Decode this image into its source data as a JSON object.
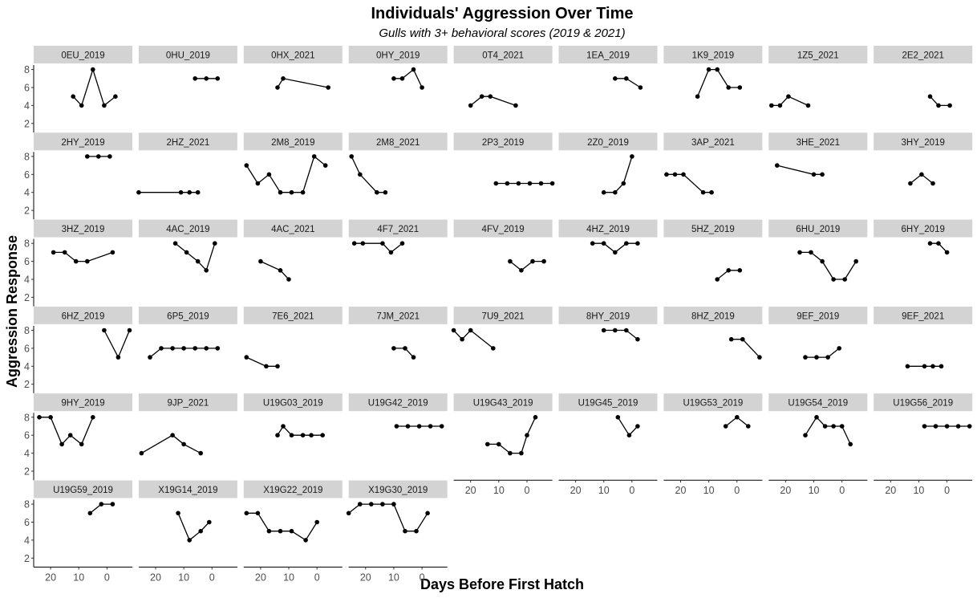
{
  "chart_data": {
    "type": "line",
    "title": "Individuals' Aggression Over Time",
    "subtitle": "Gulls with 3+ behavioral scores (2019 & 2021)",
    "xlabel": "Days Before First Hatch",
    "ylabel": "Aggression Response",
    "xlim": [
      26,
      -9
    ],
    "x_reversed": true,
    "ylim": [
      1,
      8.5
    ],
    "x_ticks": [
      20,
      10,
      0
    ],
    "y_ticks": [
      2,
      4,
      6,
      8
    ],
    "grid": false,
    "ncol": 9,
    "facets": [
      {
        "name": "0EU_2019",
        "x": [
          12,
          9,
          5,
          1,
          -3
        ],
        "y": [
          5,
          4,
          8,
          4,
          5
        ]
      },
      {
        "name": "0HU_2019",
        "x": [
          6,
          2,
          -2
        ],
        "y": [
          7,
          7,
          7
        ]
      },
      {
        "name": "0HX_2021",
        "x": [
          14,
          12,
          -4
        ],
        "y": [
          6,
          7,
          6
        ]
      },
      {
        "name": "0HY_2019",
        "x": [
          10,
          7,
          3,
          0
        ],
        "y": [
          7,
          7,
          8,
          6
        ]
      },
      {
        "name": "0T4_2021",
        "x": [
          20,
          16,
          13,
          4
        ],
        "y": [
          4,
          5,
          5,
          4
        ]
      },
      {
        "name": "1EA_2019",
        "x": [
          6,
          2,
          -3
        ],
        "y": [
          7,
          7,
          6
        ]
      },
      {
        "name": "1K9_2019",
        "x": [
          14,
          10,
          7,
          3,
          -1
        ],
        "y": [
          5,
          8,
          8,
          6,
          6
        ]
      },
      {
        "name": "1Z5_2021",
        "x": [
          25,
          22,
          19,
          12
        ],
        "y": [
          4,
          4,
          5,
          4
        ]
      },
      {
        "name": "2E2_2021",
        "x": [
          6,
          3,
          -1
        ],
        "y": [
          5,
          4,
          4
        ]
      },
      {
        "name": "2HY_2019",
        "x": [
          7,
          3,
          -1
        ],
        "y": [
          8,
          8,
          8
        ]
      },
      {
        "name": "2HZ_2021",
        "x": [
          26,
          11,
          8,
          5
        ],
        "y": [
          4,
          4,
          4,
          4
        ]
      },
      {
        "name": "2M8_2019",
        "x": [
          25,
          21,
          17,
          13,
          9,
          5,
          1,
          -3
        ],
        "y": [
          7,
          5,
          6,
          4,
          4,
          4,
          8,
          7
        ]
      },
      {
        "name": "2M8_2021",
        "x": [
          25,
          22,
          16,
          13
        ],
        "y": [
          8,
          6,
          4,
          4
        ]
      },
      {
        "name": "2P3_2019",
        "x": [
          11,
          7,
          3,
          -1,
          -5,
          -9
        ],
        "y": [
          5,
          5,
          5,
          5,
          5,
          5
        ]
      },
      {
        "name": "2Z0_2019",
        "x": [
          10,
          6,
          3,
          0
        ],
        "y": [
          4,
          4,
          5,
          8
        ]
      },
      {
        "name": "3AP_2021",
        "x": [
          25,
          22,
          19,
          12,
          9
        ],
        "y": [
          6,
          6,
          6,
          4,
          4
        ]
      },
      {
        "name": "3HE_2021",
        "x": [
          23,
          10,
          7
        ],
        "y": [
          7,
          6,
          6
        ]
      },
      {
        "name": "3HY_2019",
        "x": [
          13,
          9,
          5
        ],
        "y": [
          5,
          6,
          5
        ]
      },
      {
        "name": "3HZ_2019",
        "x": [
          19,
          15,
          11,
          7,
          -2
        ],
        "y": [
          7,
          7,
          6,
          6,
          7
        ]
      },
      {
        "name": "4AC_2019",
        "x": [
          13,
          9,
          5,
          2,
          -1
        ],
        "y": [
          8,
          7,
          6,
          5,
          8
        ]
      },
      {
        "name": "4AC_2021",
        "x": [
          20,
          13,
          10
        ],
        "y": [
          6,
          5,
          4
        ]
      },
      {
        "name": "4F7_2021",
        "x": [
          24,
          21,
          14,
          11,
          7
        ],
        "y": [
          8,
          8,
          8,
          7,
          8
        ]
      },
      {
        "name": "4FV_2019",
        "x": [
          6,
          2,
          -2,
          -6
        ],
        "y": [
          6,
          5,
          6,
          6
        ]
      },
      {
        "name": "4HZ_2019",
        "x": [
          14,
          10,
          6,
          2,
          -2
        ],
        "y": [
          8,
          8,
          7,
          8,
          8
        ]
      },
      {
        "name": "5HZ_2019",
        "x": [
          7,
          3,
          -1
        ],
        "y": [
          4,
          5,
          5
        ]
      },
      {
        "name": "6HU_2019",
        "x": [
          15,
          11,
          7,
          3,
          -1,
          -5
        ],
        "y": [
          7,
          7,
          6,
          4,
          4,
          6
        ]
      },
      {
        "name": "6HY_2019",
        "x": [
          6,
          3,
          0
        ],
        "y": [
          8,
          8,
          7
        ]
      },
      {
        "name": "6HZ_2019",
        "x": [
          1,
          -4,
          -8
        ],
        "y": [
          8,
          5,
          8
        ]
      },
      {
        "name": "6P5_2019",
        "x": [
          22,
          18,
          14,
          10,
          6,
          2,
          -2
        ],
        "y": [
          5,
          6,
          6,
          6,
          6,
          6,
          6
        ]
      },
      {
        "name": "7E6_2021",
        "x": [
          25,
          18,
          14
        ],
        "y": [
          5,
          4,
          4
        ]
      },
      {
        "name": "7JM_2021",
        "x": [
          10,
          6,
          3
        ],
        "y": [
          6,
          6,
          5
        ]
      },
      {
        "name": "7U9_2021",
        "x": [
          26,
          23,
          20,
          12
        ],
        "y": [
          8,
          7,
          8,
          6
        ]
      },
      {
        "name": "8HY_2019",
        "x": [
          10,
          6,
          2,
          -2
        ],
        "y": [
          8,
          8,
          8,
          7
        ]
      },
      {
        "name": "8HZ_2019",
        "x": [
          2,
          -2,
          -8
        ],
        "y": [
          7,
          7,
          5
        ]
      },
      {
        "name": "9EF_2019",
        "x": [
          13,
          9,
          5,
          1
        ],
        "y": [
          5,
          5,
          5,
          6
        ]
      },
      {
        "name": "9EF_2021",
        "x": [
          14,
          8,
          5,
          2
        ],
        "y": [
          4,
          4,
          4,
          4
        ]
      },
      {
        "name": "9HY_2019",
        "x": [
          24,
          20,
          16,
          13,
          9,
          5
        ],
        "y": [
          8,
          8,
          5,
          6,
          5,
          8
        ]
      },
      {
        "name": "9JP_2021",
        "x": [
          25,
          14,
          10,
          4
        ],
        "y": [
          4,
          6,
          5,
          4
        ]
      },
      {
        "name": "U19G03_2019",
        "x": [
          14,
          12,
          9,
          5,
          2,
          -2
        ],
        "y": [
          6,
          7,
          6,
          6,
          6,
          6
        ]
      },
      {
        "name": "U19G42_2019",
        "x": [
          9,
          5,
          1,
          -3,
          -7
        ],
        "y": [
          7,
          7,
          7,
          7,
          7
        ]
      },
      {
        "name": "U19G43_2019",
        "x": [
          14,
          10,
          6,
          2,
          0,
          -3
        ],
        "y": [
          5,
          5,
          4,
          4,
          6,
          8
        ]
      },
      {
        "name": "U19G45_2019",
        "x": [
          5,
          1,
          -2
        ],
        "y": [
          8,
          6,
          7
        ]
      },
      {
        "name": "U19G53_2019",
        "x": [
          4,
          0,
          -4
        ],
        "y": [
          7,
          8,
          7
        ]
      },
      {
        "name": "U19G54_2019",
        "x": [
          13,
          9,
          6,
          3,
          0,
          -3
        ],
        "y": [
          6,
          8,
          7,
          7,
          7,
          5
        ]
      },
      {
        "name": "U19G56_2019",
        "x": [
          8,
          4,
          0,
          -4,
          -8
        ],
        "y": [
          7,
          7,
          7,
          7,
          7
        ]
      },
      {
        "name": "U19G59_2019",
        "x": [
          6,
          2,
          -2
        ],
        "y": [
          7,
          8,
          8
        ]
      },
      {
        "name": "X19G14_2019",
        "x": [
          12,
          8,
          4,
          1
        ],
        "y": [
          7,
          4,
          5,
          6
        ]
      },
      {
        "name": "X19G22_2019",
        "x": [
          25,
          21,
          17,
          13,
          9,
          4,
          0
        ],
        "y": [
          7,
          7,
          5,
          5,
          5,
          4,
          6
        ]
      },
      {
        "name": "X19G30_2019",
        "x": [
          26,
          22,
          18,
          14,
          10,
          6,
          2,
          -2
        ],
        "y": [
          7,
          8,
          8,
          8,
          8,
          5,
          5,
          7
        ]
      }
    ]
  }
}
